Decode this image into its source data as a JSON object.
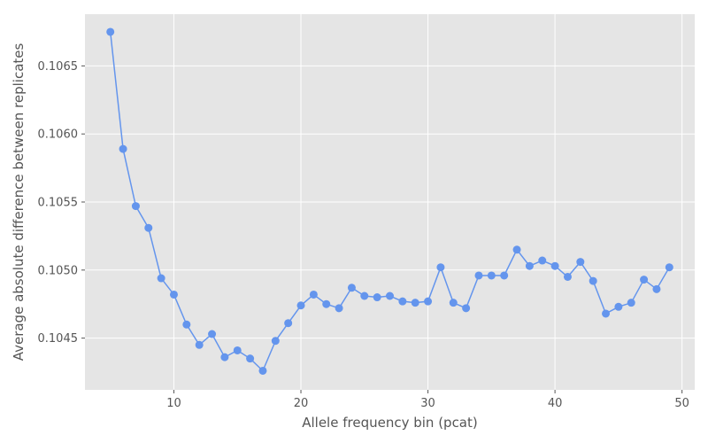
{
  "chart_data": {
    "type": "line",
    "xlabel": "Allele frequency bin (pcat)",
    "ylabel": "Average absolute difference between replicates",
    "xlim": [
      3,
      51
    ],
    "ylim": [
      0.10412,
      0.10688
    ],
    "xticks": [
      10,
      20,
      30,
      40,
      50
    ],
    "yticks": [
      0.1045,
      0.105,
      0.1055,
      0.106,
      0.1065
    ],
    "ytick_labels": [
      "0.1045",
      "0.1050",
      "0.1055",
      "0.1060",
      "0.1065"
    ],
    "grid": true,
    "background": "#e5e5e5",
    "series_color": "#6495ed",
    "series": [
      {
        "x": [
          5,
          6,
          7,
          8,
          9,
          10,
          11,
          12,
          13,
          14,
          15,
          16,
          17,
          18,
          19,
          20,
          21,
          22,
          23,
          24,
          25,
          26,
          27,
          28,
          29,
          30,
          31,
          32,
          33,
          34,
          35,
          36,
          37,
          38,
          39,
          40,
          41,
          42,
          43,
          44,
          45,
          46,
          47,
          48,
          49
        ],
        "values": [
          0.10675,
          0.10589,
          0.10547,
          0.10531,
          0.10494,
          0.10482,
          0.1046,
          0.10445,
          0.10453,
          0.10436,
          0.10441,
          0.10435,
          0.10426,
          0.10448,
          0.10461,
          0.10474,
          0.10482,
          0.10475,
          0.10472,
          0.10487,
          0.10481,
          0.1048,
          0.10481,
          0.10477,
          0.10476,
          0.10477,
          0.10502,
          0.10476,
          0.10472,
          0.10496,
          0.10496,
          0.10496,
          0.10515,
          0.10503,
          0.10507,
          0.10503,
          0.10495,
          0.10506,
          0.10492,
          0.10468,
          0.10473,
          0.10476,
          0.10493,
          0.10486,
          0.10502
        ]
      }
    ]
  }
}
